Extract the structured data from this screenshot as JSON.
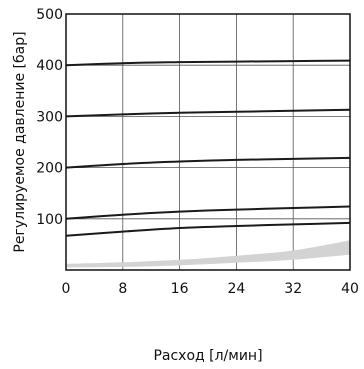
{
  "chart_data": {
    "type": "line",
    "xlabel": "Расход [л/мин]",
    "ylabel": "Регулируемое давление [бар]",
    "xlim": [
      0,
      40
    ],
    "ylim": [
      0,
      500
    ],
    "x_ticks": [
      "0",
      "8",
      "16",
      "24",
      "32",
      "40"
    ],
    "y_ticks": [
      "100",
      "200",
      "300",
      "400",
      "500"
    ],
    "grid": true,
    "series": [
      {
        "x": [
          0,
          8,
          16,
          24,
          32,
          40
        ],
        "values": [
          400,
          404,
          406,
          407,
          408,
          409
        ]
      },
      {
        "x": [
          0,
          8,
          16,
          24,
          32,
          40
        ],
        "values": [
          300,
          304,
          307,
          309,
          311,
          313
        ]
      },
      {
        "x": [
          0,
          8,
          16,
          24,
          32,
          40
        ],
        "values": [
          200,
          207,
          212,
          215,
          217,
          219
        ]
      },
      {
        "x": [
          0,
          8,
          16,
          24,
          32,
          40
        ],
        "values": [
          100,
          108,
          114,
          118,
          121,
          124
        ]
      },
      {
        "x": [
          0,
          8,
          16,
          24,
          32,
          40
        ],
        "values": [
          67,
          75,
          82,
          86,
          89,
          92
        ]
      }
    ],
    "band": {
      "x": [
        0,
        8,
        16,
        24,
        32,
        40
      ],
      "upper": [
        12,
        15,
        20,
        28,
        38,
        58
      ],
      "lower": [
        5,
        6,
        9,
        14,
        20,
        30
      ]
    },
    "colors": {
      "line": "#1a1a1a",
      "grid": "#555555",
      "band": "#d3d3d3"
    }
  }
}
